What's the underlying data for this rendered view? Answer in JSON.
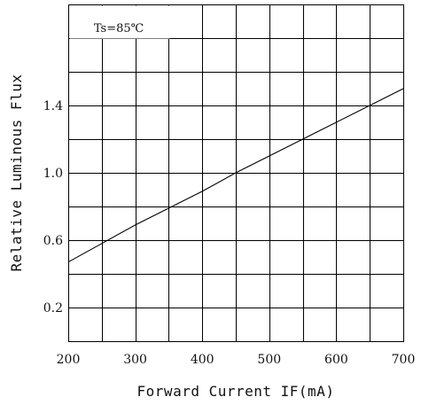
{
  "chart_data": {
    "type": "line",
    "title": "",
    "xlabel": "Forward Current IF(mA)",
    "ylabel": "Relative Luminous Flux",
    "xlim": [
      200,
      700
    ],
    "ylim": [
      0,
      2.0
    ],
    "x_ticks": [
      200,
      300,
      400,
      500,
      600,
      700
    ],
    "x_tick_labels": [
      "200",
      "300",
      "400",
      "500",
      "600",
      "700"
    ],
    "y_ticks": [
      0.2,
      0.6,
      1.0,
      1.4
    ],
    "y_tick_labels": [
      "0.2",
      "0.6",
      "1.0",
      "1.4"
    ],
    "grid": true,
    "annotation": "Ts=85℃",
    "series": [
      {
        "x": [
          200,
          250,
          300,
          350,
          400,
          450,
          500,
          550,
          600,
          650,
          700
        ],
        "y": [
          0.47,
          0.58,
          0.69,
          0.79,
          0.89,
          1.0,
          1.1,
          1.2,
          1.3,
          1.4,
          1.5
        ]
      }
    ]
  }
}
